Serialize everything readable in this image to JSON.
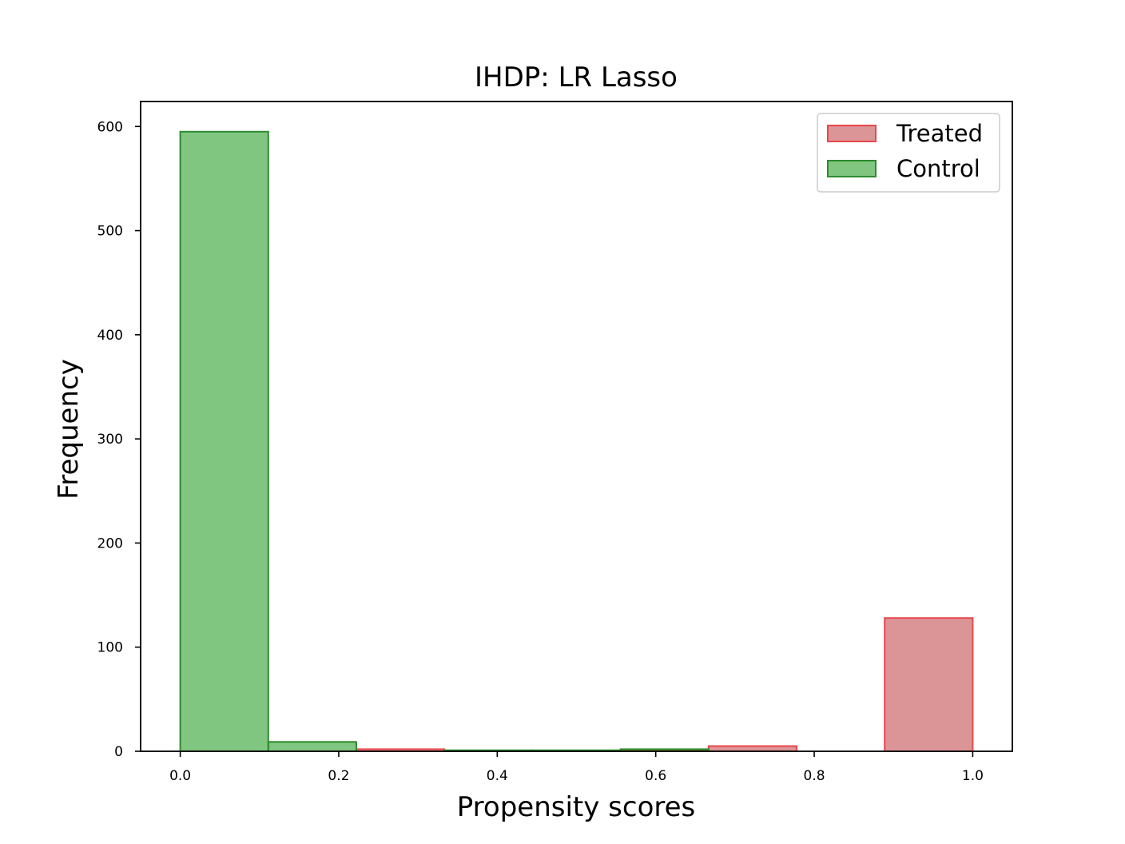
{
  "chart_data": {
    "type": "bar",
    "title": "IHDP: LR Lasso",
    "xlabel": "Propensity scores",
    "ylabel": "Frequency",
    "xlim": [
      -0.05,
      1.05
    ],
    "ylim": [
      0,
      624
    ],
    "xticks": [
      0.0,
      0.2,
      0.4,
      0.6,
      0.8,
      1.0
    ],
    "xtick_labels": [
      "0.0",
      "0.2",
      "0.4",
      "0.6",
      "0.8",
      "1.0"
    ],
    "yticks": [
      0,
      100,
      200,
      300,
      400,
      500,
      600
    ],
    "ytick_labels": [
      "0",
      "100",
      "200",
      "300",
      "400",
      "500",
      "600"
    ],
    "bin_edges": [
      0.0,
      0.1111,
      0.2222,
      0.3333,
      0.4444,
      0.5556,
      0.6667,
      0.7778,
      0.8889,
      1.0
    ],
    "series": [
      {
        "name": "Treated",
        "fill": "#c44e52",
        "edge": "#e8474b",
        "values": [
          0,
          0,
          2,
          0,
          0,
          1,
          5,
          0,
          128
        ]
      },
      {
        "name": "Control",
        "fill": "#2ca02c",
        "edge": "#2e8b2e",
        "values": [
          595,
          9,
          0,
          1,
          1,
          2,
          0,
          0,
          0
        ]
      }
    ],
    "legend": {
      "location": "top-right",
      "entries": [
        "Treated",
        "Control"
      ]
    }
  }
}
